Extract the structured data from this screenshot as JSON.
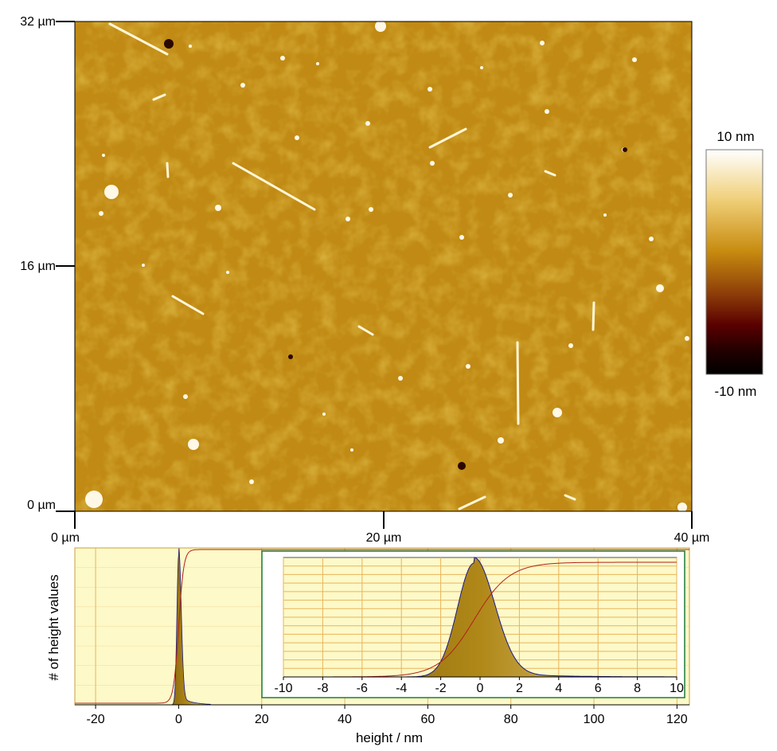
{
  "colors": {
    "map_base": "#c08a14",
    "map_light": "#d2a838",
    "colorbar_top": "#ffffff",
    "colorbar_mid": "#c88c10",
    "colorbar_low": "#5a0000",
    "colorbar_bottom": "#000000",
    "hist_bg": "#fdf9c8",
    "hist_grid": "#e8b45a",
    "hist_fill": "#a07a10",
    "cumulative_line": "#b0201c",
    "inset_border": "#1f7a3a",
    "hist_outline": "#1a1a8a"
  },
  "chart_data": [
    {
      "type": "heatmap",
      "xlabel": "",
      "ylabel": "",
      "x_ticks": [
        "0 µm",
        "20 µm",
        "40 µm"
      ],
      "y_ticks": [
        "32 µm",
        "16 µm",
        "0 µm"
      ],
      "xlim": [
        0,
        40
      ],
      "ylim": [
        0,
        32
      ],
      "units": "µm",
      "colorbar": {
        "max_label": "10 nm",
        "min_label": "-10 nm",
        "range": [
          -10,
          10
        ]
      }
    },
    {
      "type": "area",
      "title": "",
      "xlabel": "height / nm",
      "ylabel": "# of height values",
      "x_ticks": [
        "-20",
        "0",
        "20",
        "40",
        "60",
        "80",
        "100",
        "120"
      ],
      "xlim": [
        -25,
        123
      ],
      "peak_center": 0,
      "cumulative_curve": true,
      "inset": {
        "x_ticks": [
          "-10",
          "-8",
          "-6",
          "-4",
          "-2",
          "0",
          "2",
          "4",
          "6",
          "8",
          "10"
        ],
        "xlim": [
          -10,
          10
        ],
        "peak_center": -0.3
      }
    }
  ]
}
